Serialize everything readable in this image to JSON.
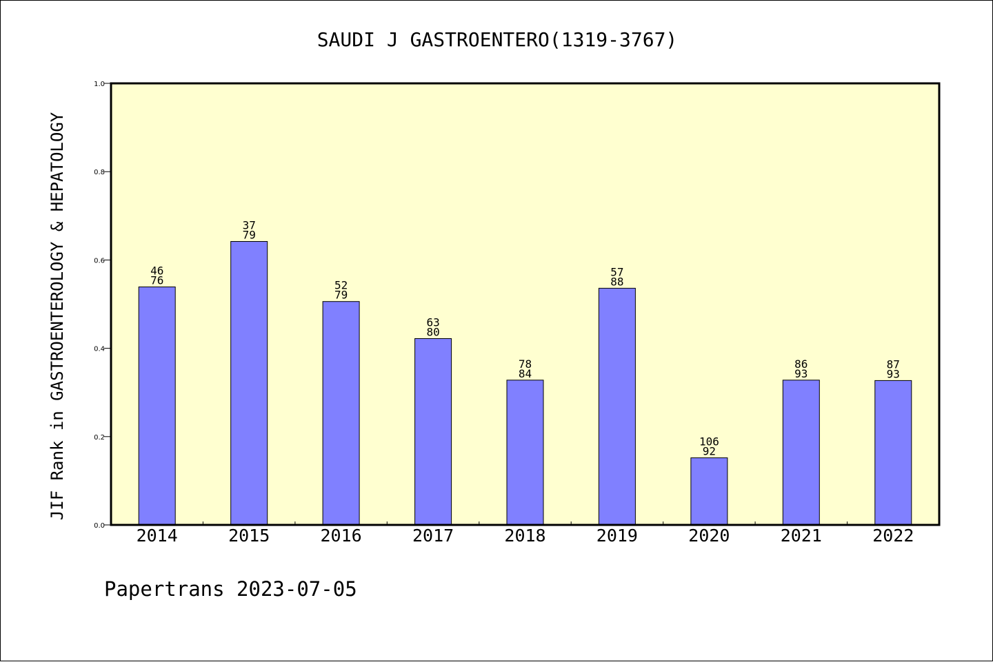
{
  "chart_data": {
    "type": "bar",
    "title": "SAUDI J GASTROENTERO(1319-3767)",
    "xlabel": "",
    "ylabel": "JIF Rank in GASTROENTEROLOGY & HEPATOLOGY",
    "ylim": [
      0,
      1
    ],
    "yticks": [
      "0.0",
      "0.2",
      "0.4",
      "0.6",
      "0.8",
      "1.0"
    ],
    "categories": [
      "2014",
      "2015",
      "2016",
      "2017",
      "2018",
      "2019",
      "2020",
      "2021",
      "2022"
    ],
    "values": [
      0.539,
      0.642,
      0.506,
      0.422,
      0.328,
      0.536,
      0.152,
      0.328,
      0.327
    ],
    "rank": [
      "46",
      "37",
      "52",
      "63",
      "78",
      "57",
      "106",
      "86",
      "87"
    ],
    "total": [
      "76",
      "79",
      "79",
      "80",
      "84",
      "88",
      "92",
      "93",
      "93"
    ],
    "grid": false,
    "legend": "none",
    "colors": {
      "bar": "#8080ff",
      "plot_background": "#ffffd0",
      "axis": "#000000"
    }
  },
  "footer": {
    "text": "Papertrans 2023-07-05"
  }
}
